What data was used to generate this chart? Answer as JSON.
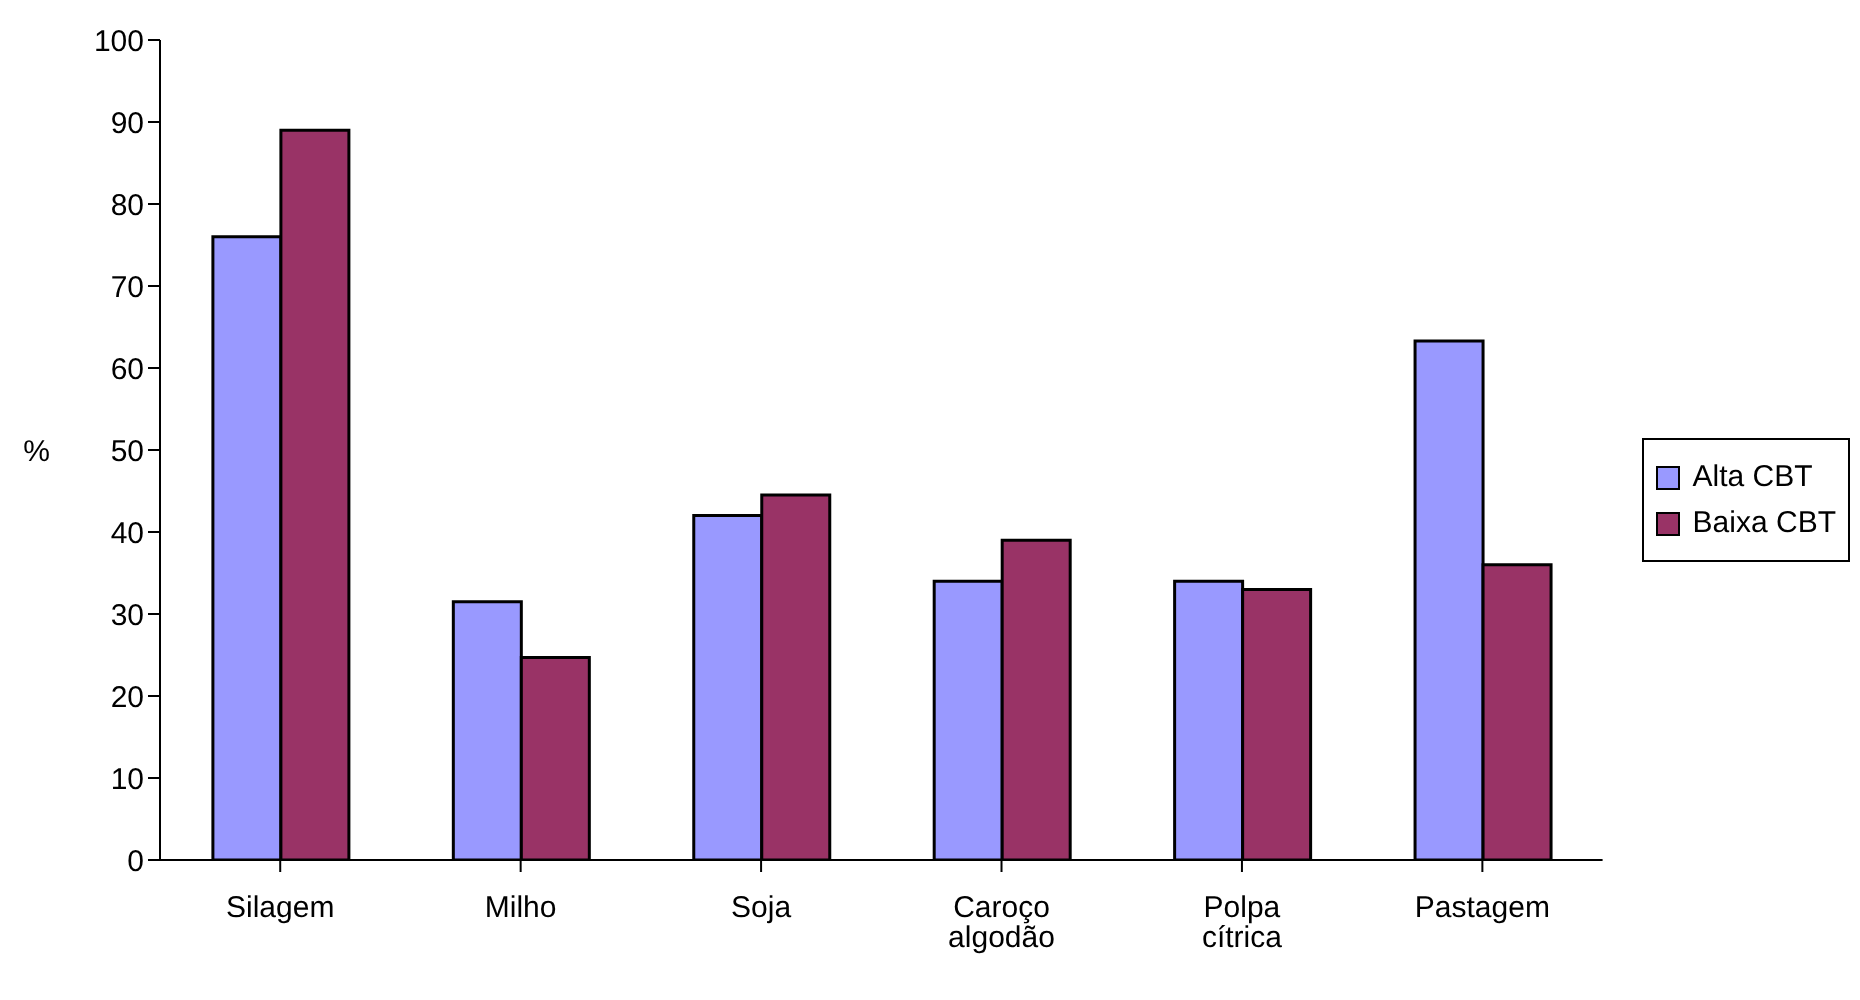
{
  "chart_data": {
    "type": "bar",
    "ylabel": "%",
    "categories": [
      "Silagem",
      "Milho",
      "Soja",
      "Caroço algodão",
      "Polpa cítrica",
      "Pastagem"
    ],
    "series": [
      {
        "name": "Alta CBT",
        "color": "#9999ff",
        "values": [
          76,
          31.5,
          42,
          34,
          34,
          63.3
        ]
      },
      {
        "name": "Baixa CBT",
        "color": "#993366",
        "values": [
          89,
          24.7,
          44.5,
          39,
          33,
          36
        ]
      }
    ],
    "ylim": [
      0,
      100
    ],
    "yticks": [
      0,
      10,
      20,
      30,
      40,
      50,
      60,
      70,
      80,
      90,
      100
    ],
    "grid": false,
    "legend": "right"
  }
}
